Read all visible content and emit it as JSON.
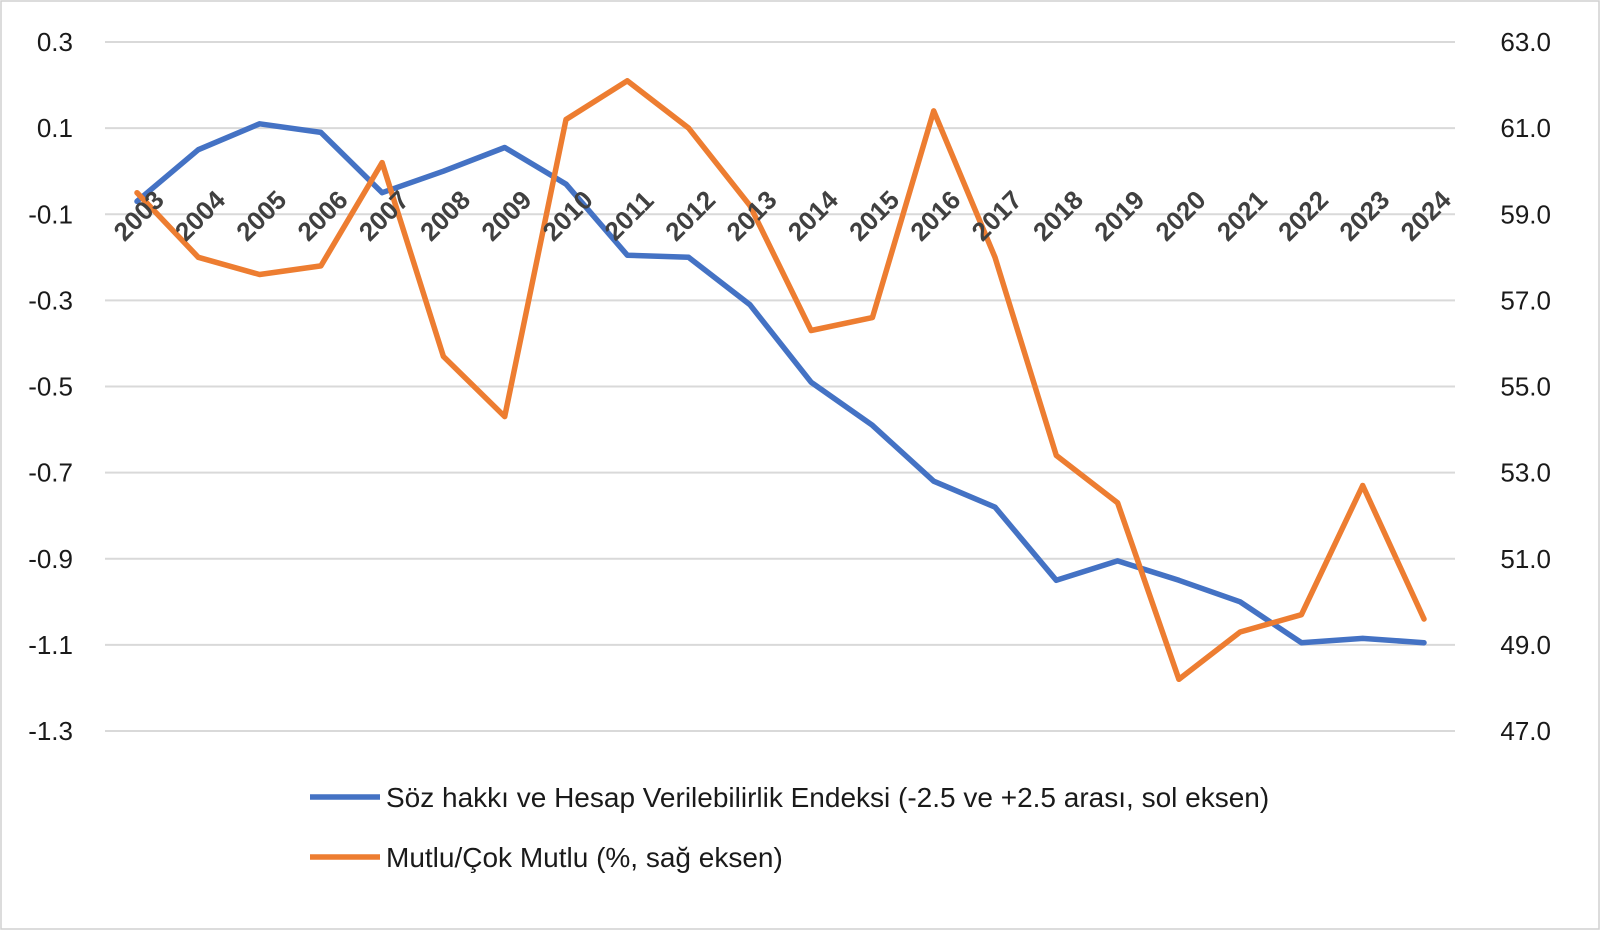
{
  "chart_data": {
    "type": "line",
    "title": "",
    "x": [
      "2003",
      "2004",
      "2005",
      "2006",
      "2007",
      "2008",
      "2009",
      "2010",
      "2011",
      "2012",
      "2013",
      "2014",
      "2015",
      "2016",
      "2017",
      "2018",
      "2019",
      "2020",
      "2021",
      "2022",
      "2023",
      "2024"
    ],
    "left_axis": {
      "ylim": [
        -1.3,
        0.3
      ],
      "ticks": [
        0.3,
        0.1,
        -0.1,
        -0.3,
        -0.5,
        -0.7,
        -0.9,
        -1.1,
        -1.3
      ],
      "tick_labels": [
        "0.3",
        "0.1",
        "-0.1",
        "-0.3",
        "-0.5",
        "-0.7",
        "-0.9",
        "-1.1",
        "-1.3"
      ]
    },
    "right_axis": {
      "ylim": [
        47.0,
        63.0
      ],
      "ticks": [
        63.0,
        61.0,
        59.0,
        57.0,
        55.0,
        53.0,
        51.0,
        49.0,
        47.0
      ],
      "tick_labels": [
        "63.0",
        "61.0",
        "59.0",
        "57.0",
        "55.0",
        "53.0",
        "51.0",
        "49.0",
        "47.0"
      ]
    },
    "grid": true,
    "legend_position": "bottom",
    "series": [
      {
        "name": "Söz hakkı ve Hesap Verilebilirlik Endeksi (-2.5 ve +2.5 arası, sol eksen)",
        "axis": "left",
        "color": "#4472C4",
        "values": [
          -0.07,
          0.05,
          0.11,
          0.09,
          -0.05,
          0.0,
          0.055,
          -0.03,
          -0.195,
          -0.2,
          -0.31,
          -0.49,
          -0.59,
          -0.72,
          -0.78,
          -0.95,
          -0.905,
          -0.95,
          -1.0,
          -1.095,
          -1.085,
          -1.095
        ]
      },
      {
        "name": "Mutlu/Çok Mutlu (%, sağ eksen)",
        "axis": "right",
        "color": "#ED7D31",
        "values": [
          59.5,
          58.0,
          57.6,
          57.8,
          60.2,
          55.7,
          54.3,
          61.2,
          62.1,
          61.0,
          59.2,
          56.3,
          56.6,
          61.4,
          58.0,
          53.4,
          52.3,
          48.2,
          49.3,
          49.7,
          52.7,
          49.6
        ]
      }
    ]
  }
}
